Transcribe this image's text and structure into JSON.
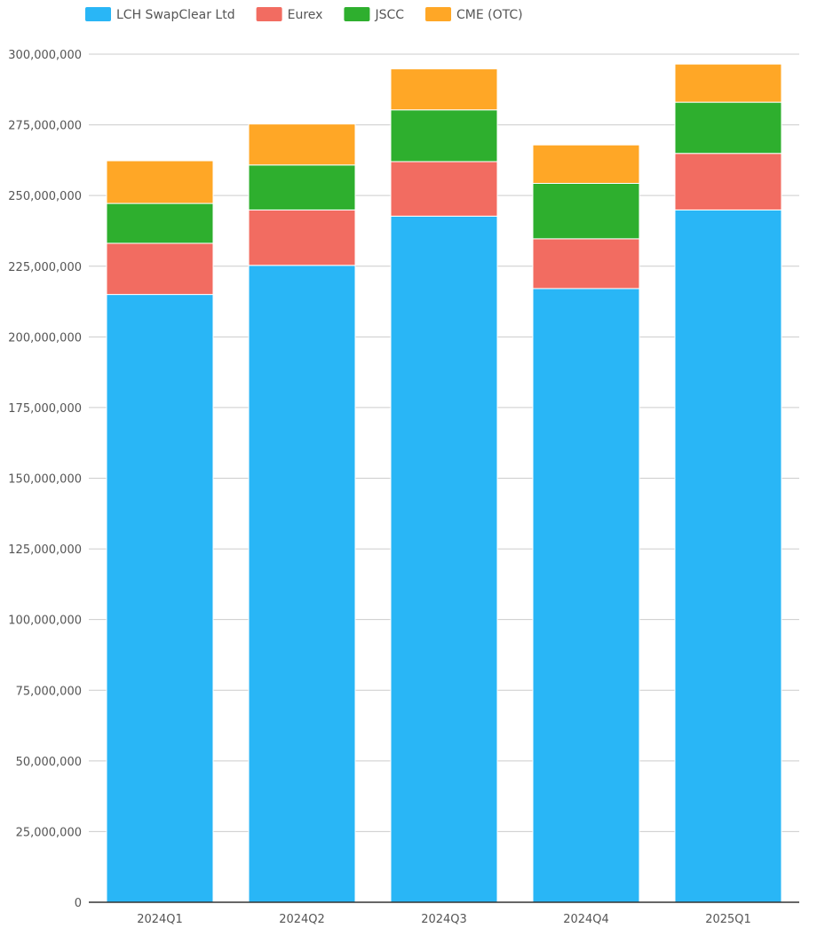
{
  "chart_data": {
    "type": "bar",
    "stacked": true,
    "categories": [
      "2024Q1",
      "2024Q2",
      "2024Q3",
      "2024Q4",
      "2025Q1"
    ],
    "series": [
      {
        "name": "LCH SwapClear Ltd",
        "color": "#29b6f6",
        "values": [
          215000000,
          225300000,
          242700000,
          217100000,
          244900000
        ]
      },
      {
        "name": "Eurex",
        "color": "#f26c61",
        "values": [
          18100000,
          19600000,
          19300000,
          17600000,
          20000000
        ]
      },
      {
        "name": "JSCC",
        "color": "#2eaf2e",
        "values": [
          14100000,
          15900000,
          18300000,
          19600000,
          18100000
        ]
      },
      {
        "name": "CME (OTC)",
        "color": "#ffa726",
        "values": [
          15100000,
          14500000,
          14500000,
          13600000,
          13500000
        ]
      }
    ],
    "ylim": [
      0,
      300000000
    ],
    "yticks": [
      "0",
      "25,000,000",
      "50,000,000",
      "75,000,000",
      "100,000,000",
      "125,000,000",
      "150,000,000",
      "175,000,000",
      "200,000,000",
      "225,000,000",
      "250,000,000",
      "275,000,000",
      "300,000,000"
    ],
    "grid": true,
    "legend_position": "top-left",
    "title": "",
    "xlabel": "",
    "ylabel": ""
  }
}
